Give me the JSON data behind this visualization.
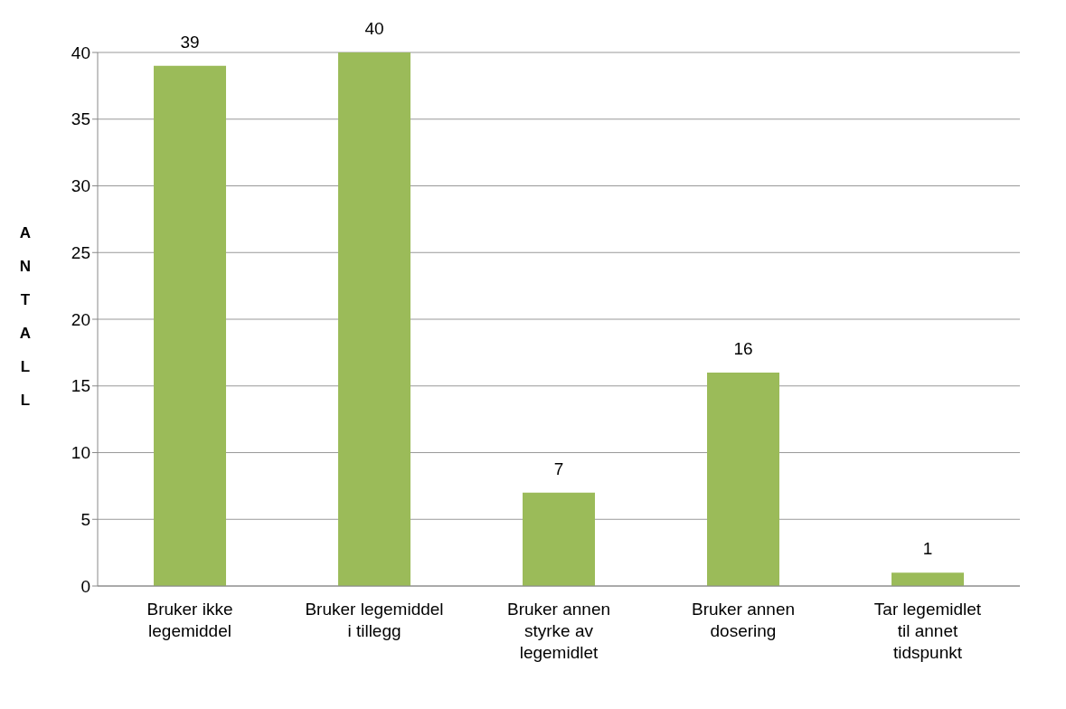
{
  "chart_data": {
    "type": "bar",
    "ylabel": "ANTALL",
    "categories": [
      "Bruker ikke legemiddel",
      "Bruker legemiddel i tillegg",
      "Bruker annen styrke av legemidlet",
      "Bruker annen dosering",
      "Tar legemidlet til annet tidspunkt"
    ],
    "values": [
      39,
      40,
      7,
      16,
      1
    ],
    "color": "#9bbb59",
    "ylim": [
      0,
      40
    ],
    "yticks": [
      0,
      5,
      10,
      15,
      20,
      25,
      30,
      35,
      40
    ],
    "grid": "y",
    "data_labels": true,
    "legend": false
  }
}
